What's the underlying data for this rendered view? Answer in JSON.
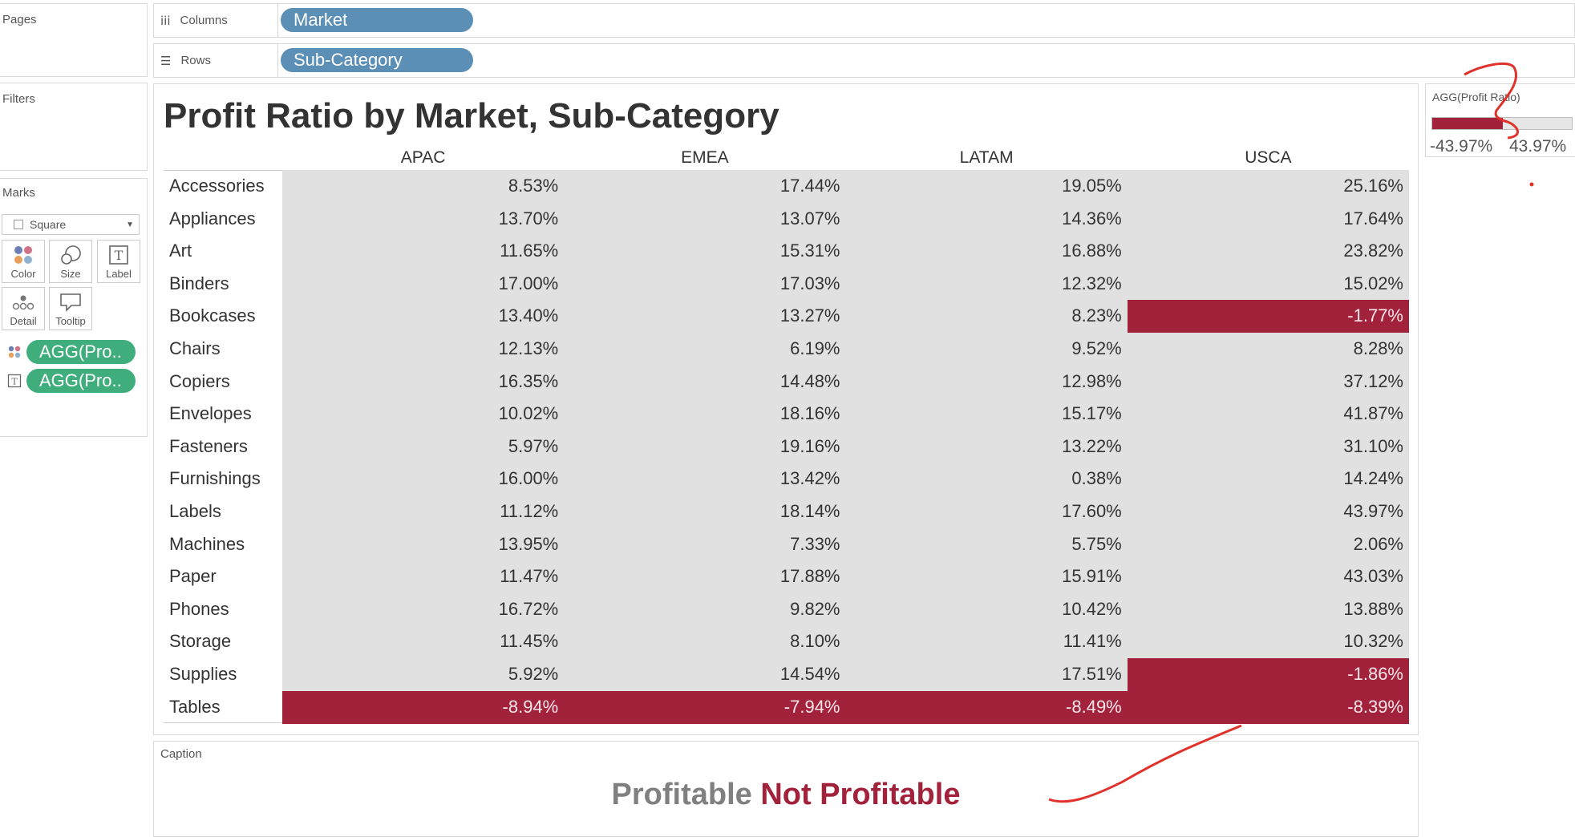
{
  "left_panels": {
    "pages_label": "Pages",
    "filters_label": "Filters",
    "marks_label": "Marks",
    "mark_type": "Square",
    "mark_buttons": [
      {
        "label": "Color",
        "icon": "color-dots-icon"
      },
      {
        "label": "Size",
        "icon": "size-circles-icon"
      },
      {
        "label": "Label",
        "icon": "text-t-icon"
      },
      {
        "label": "Detail",
        "icon": "detail-dots-icon"
      },
      {
        "label": "Tooltip",
        "icon": "tooltip-bubble-icon"
      }
    ],
    "mark_pills": [
      "AGG(Pro..",
      "AGG(Pro.."
    ]
  },
  "shelves": {
    "columns_label": "Columns",
    "columns_pill": "Market",
    "rows_label": "Rows",
    "rows_pill": "Sub-Category"
  },
  "legend": {
    "title": "AGG(Profit Ratio)",
    "min": "-43.97%",
    "max": "43.97%",
    "negative_color": "#a3223b",
    "positive_color": "#e1e1e1"
  },
  "caption": {
    "label": "Caption",
    "profitable": "Profitable",
    "not_profitable": "Not Profitable"
  },
  "chart_data": {
    "type": "table",
    "title": "Profit Ratio by Market, Sub-Category",
    "columns": [
      "APAC",
      "EMEA",
      "LATAM",
      "USCA"
    ],
    "rows": [
      {
        "label": "Accessories",
        "values": [
          "8.53%",
          "17.44%",
          "19.05%",
          "25.16%"
        ]
      },
      {
        "label": "Appliances",
        "values": [
          "13.70%",
          "13.07%",
          "14.36%",
          "17.64%"
        ]
      },
      {
        "label": "Art",
        "values": [
          "11.65%",
          "15.31%",
          "16.88%",
          "23.82%"
        ]
      },
      {
        "label": "Binders",
        "values": [
          "17.00%",
          "17.03%",
          "12.32%",
          "15.02%"
        ]
      },
      {
        "label": "Bookcases",
        "values": [
          "13.40%",
          "13.27%",
          "8.23%",
          "-1.77%"
        ]
      },
      {
        "label": "Chairs",
        "values": [
          "12.13%",
          "6.19%",
          "9.52%",
          "8.28%"
        ]
      },
      {
        "label": "Copiers",
        "values": [
          "16.35%",
          "14.48%",
          "12.98%",
          "37.12%"
        ]
      },
      {
        "label": "Envelopes",
        "values": [
          "10.02%",
          "18.16%",
          "15.17%",
          "41.87%"
        ]
      },
      {
        "label": "Fasteners",
        "values": [
          "5.97%",
          "19.16%",
          "13.22%",
          "31.10%"
        ]
      },
      {
        "label": "Furnishings",
        "values": [
          "16.00%",
          "13.42%",
          "0.38%",
          "14.24%"
        ]
      },
      {
        "label": "Labels",
        "values": [
          "11.12%",
          "18.14%",
          "17.60%",
          "43.97%"
        ]
      },
      {
        "label": "Machines",
        "values": [
          "13.95%",
          "7.33%",
          "5.75%",
          "2.06%"
        ]
      },
      {
        "label": "Paper",
        "values": [
          "11.47%",
          "17.88%",
          "15.91%",
          "43.03%"
        ]
      },
      {
        "label": "Phones",
        "values": [
          "16.72%",
          "9.82%",
          "10.42%",
          "13.88%"
        ]
      },
      {
        "label": "Storage",
        "values": [
          "11.45%",
          "8.10%",
          "11.41%",
          "10.32%"
        ]
      },
      {
        "label": "Supplies",
        "values": [
          "5.92%",
          "14.54%",
          "17.51%",
          "-1.86%"
        ]
      },
      {
        "label": "Tables",
        "values": [
          "-8.94%",
          "-7.94%",
          "-8.49%",
          "-8.39%"
        ]
      }
    ]
  }
}
